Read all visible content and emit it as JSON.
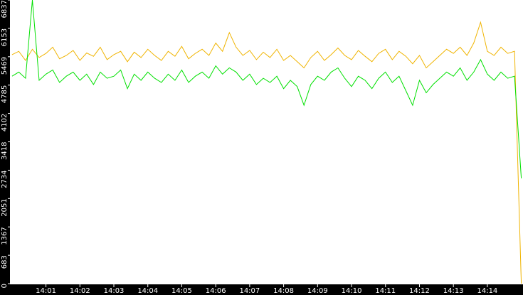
{
  "chart_data": {
    "type": "line",
    "x": [
      0,
      0.2,
      0.4,
      0.6,
      0.8,
      1,
      1.2,
      1.4,
      1.6,
      1.8,
      2,
      2.2,
      2.4,
      2.6,
      2.8,
      3,
      3.2,
      3.4,
      3.6,
      3.8,
      4,
      4.2,
      4.4,
      4.6,
      4.8,
      5,
      5.2,
      5.4,
      5.6,
      5.8,
      6,
      6.2,
      6.4,
      6.6,
      6.8,
      7,
      7.2,
      7.4,
      7.6,
      7.8,
      8,
      8.2,
      8.4,
      8.6,
      8.8,
      9,
      9.2,
      9.4,
      9.6,
      9.8,
      10,
      10.2,
      10.4,
      10.6,
      10.8,
      11,
      11.2,
      11.4,
      11.6,
      11.8,
      12,
      12.2,
      12.4,
      12.6,
      12.8,
      13,
      13.2,
      13.4,
      13.6,
      13.8,
      14,
      14.2,
      14.4,
      14.6,
      14.8,
      15
    ],
    "series": [
      {
        "color": "#f0b400",
        "values": [
          5520,
          5600,
          5380,
          5650,
          5450,
          5550,
          5700,
          5420,
          5500,
          5620,
          5380,
          5560,
          5480,
          5700,
          5400,
          5520,
          5600,
          5350,
          5580,
          5450,
          5650,
          5500,
          5380,
          5600,
          5480,
          5720,
          5420,
          5550,
          5650,
          5500,
          5800,
          5600,
          6050,
          5700,
          5500,
          5620,
          5400,
          5580,
          5450,
          5650,
          5380,
          5500,
          5350,
          5200,
          5450,
          5600,
          5380,
          5520,
          5680,
          5500,
          5400,
          5620,
          5480,
          5350,
          5550,
          5650,
          5400,
          5600,
          5480,
          5300,
          5500,
          5200,
          5350,
          5500,
          5650,
          5550,
          5700,
          5500,
          5800,
          6300,
          5600,
          5500,
          5700,
          5550,
          5600,
          0
        ]
      },
      {
        "color": "#00e000",
        "values": [
          5000,
          5100,
          4950,
          6837,
          4900,
          5050,
          5150,
          4850,
          5000,
          5100,
          4900,
          5050,
          4800,
          5100,
          4950,
          5000,
          5150,
          4700,
          5050,
          4900,
          5100,
          4950,
          4850,
          5050,
          4900,
          5150,
          4850,
          5000,
          5100,
          4950,
          5250,
          5050,
          5200,
          5100,
          4900,
          5050,
          4800,
          4950,
          4850,
          5000,
          4700,
          4900,
          4750,
          4300,
          4800,
          5000,
          4900,
          5100,
          5200,
          4950,
          4750,
          5000,
          4900,
          4700,
          4950,
          5100,
          4850,
          5000,
          4650,
          4300,
          4900,
          4600,
          4800,
          4950,
          5100,
          5000,
          5200,
          4900,
          5100,
          5400,
          5050,
          4900,
          5100,
          4950,
          5000,
          2540
        ]
      }
    ],
    "xlim": [
      -0.06,
      15.05
    ],
    "xticks": [
      {
        "value": 1,
        "label": "14:01"
      },
      {
        "value": 2,
        "label": "14:02"
      },
      {
        "value": 3,
        "label": "14:03"
      },
      {
        "value": 4,
        "label": "14:04"
      },
      {
        "value": 5,
        "label": "14:05"
      },
      {
        "value": 6,
        "label": "14:06"
      },
      {
        "value": 7,
        "label": "14:07"
      },
      {
        "value": 8,
        "label": "14:08"
      },
      {
        "value": 9,
        "label": "14:09"
      },
      {
        "value": 10,
        "label": "14:10"
      },
      {
        "value": 11,
        "label": "14:11"
      },
      {
        "value": 12,
        "label": "14:12"
      },
      {
        "value": 13,
        "label": "14:13"
      },
      {
        "value": 14,
        "label": "14:14"
      }
    ],
    "ylim": [
      0,
      6837
    ],
    "yticks": [
      0,
      683,
      1367,
      2051,
      2734,
      3418,
      4102,
      4785,
      5469,
      6153,
      6837
    ]
  }
}
